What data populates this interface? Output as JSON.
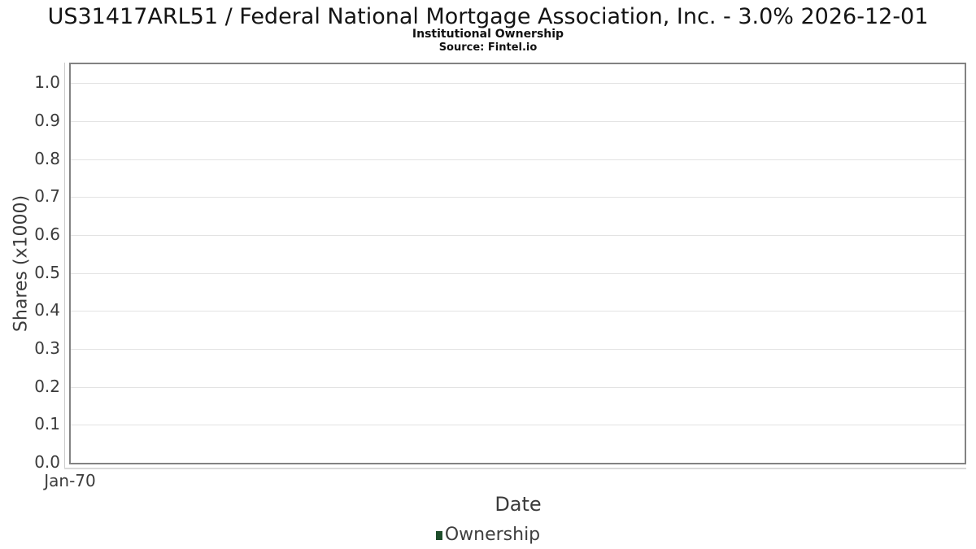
{
  "chart_data": {
    "type": "line",
    "title": "US31417ARL51 / Federal National Mortgage Association, Inc. - 3.0% 2026-12-01",
    "subtitle": "Institutional Ownership",
    "source": "Source: Fintel.io",
    "xlabel": "Date",
    "ylabel": "Shares (x1000)",
    "x_tick_labels": [
      "Jan-70"
    ],
    "y_ticks": [
      0.0,
      0.1,
      0.2,
      0.3,
      0.4,
      0.5,
      0.6,
      0.7,
      0.8,
      0.9,
      1.0
    ],
    "ylim": [
      0,
      1.05
    ],
    "grid": true,
    "legend_position": "bottom",
    "series": [
      {
        "name": "Ownership",
        "color": "#1e4d2b",
        "x": [],
        "values": []
      }
    ]
  },
  "colors": {
    "plot_border": "#828282",
    "gridline": "#e3e3e3",
    "axis_line": "#cccccc",
    "tick_text": "#3b3b3b",
    "title_text": "#141414",
    "legend_swatch": "#1e4d2b"
  }
}
